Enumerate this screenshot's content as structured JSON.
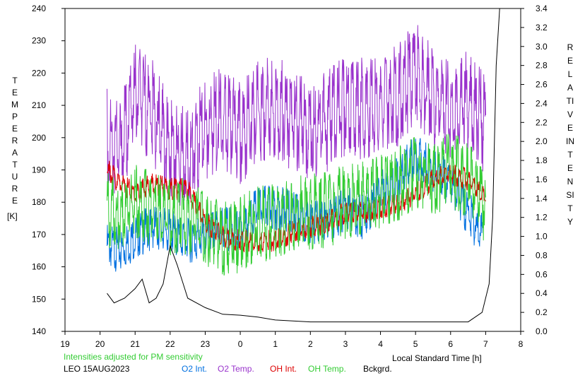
{
  "chart_data": {
    "type": "line",
    "y_left_label": "TEMPERATURE",
    "y_left_unit": "[K]",
    "y_right_label": "RELATIVE INTENSITY",
    "x_label": "Local Standard Time [h]",
    "x_ticks": [
      "19",
      "20",
      "21",
      "22",
      "23",
      "0",
      "1",
      "2",
      "3",
      "4",
      "5",
      "6",
      "7",
      "8"
    ],
    "y_left_range": [
      140,
      240
    ],
    "y_left_ticks": [
      140,
      150,
      160,
      170,
      180,
      190,
      200,
      210,
      220,
      230,
      240
    ],
    "y_right_range": [
      0.0,
      3.4
    ],
    "y_right_ticks": [
      "0.0",
      "0.2",
      "0.4",
      "0.6",
      "0.8",
      "1.0",
      "1.2",
      "1.4",
      "1.6",
      "1.8",
      "2.0",
      "2.2",
      "2.4",
      "2.6",
      "2.8",
      "3.0",
      "3.2",
      "3.4"
    ],
    "note": "Intensities adjusted for PM sensitivity",
    "station_date": "LEO 15AUG2023",
    "series": [
      {
        "name": "O2 Int.",
        "color": "#0070e0",
        "axis": "right",
        "x": [
          20.2,
          20.6,
          21.0,
          21.5,
          22.0,
          22.5,
          23.0,
          23.5,
          0.0,
          0.5,
          1.0,
          1.5,
          2.0,
          2.5,
          3.0,
          3.5,
          4.0,
          4.5,
          5.0,
          5.5,
          6.0,
          6.5,
          6.9
        ],
        "y": [
          0.9,
          0.85,
          1.0,
          1.1,
          1.05,
          0.95,
          1.0,
          1.1,
          1.05,
          1.3,
          1.3,
          1.25,
          1.15,
          1.15,
          1.3,
          1.2,
          1.45,
          1.6,
          1.85,
          1.7,
          1.55,
          1.25,
          1.0
        ]
      },
      {
        "name": "O2 Temp.",
        "color": "#9933cc",
        "axis": "left",
        "x": [
          20.2,
          20.6,
          21.0,
          21.5,
          22.0,
          22.5,
          23.0,
          23.5,
          0.0,
          0.5,
          1.0,
          1.5,
          2.0,
          2.5,
          3.0,
          3.5,
          4.0,
          4.5,
          5.0,
          5.5,
          6.0,
          6.5,
          7.0
        ],
        "y": [
          200,
          196,
          214,
          208,
          196,
          193,
          203,
          206,
          201,
          208,
          210,
          205,
          203,
          205,
          210,
          209,
          211,
          213,
          220,
          212,
          208,
          211,
          204
        ]
      },
      {
        "name": "OH Int.",
        "color": "#dd0000",
        "axis": "right",
        "x": [
          20.2,
          20.6,
          21.0,
          21.5,
          22.0,
          22.5,
          23.0,
          23.5,
          0.0,
          0.5,
          1.0,
          1.5,
          2.0,
          2.5,
          3.0,
          3.5,
          4.0,
          4.5,
          5.0,
          5.5,
          6.0,
          6.5,
          7.0
        ],
        "y": [
          1.7,
          1.55,
          1.45,
          1.55,
          1.5,
          1.5,
          1.15,
          1.0,
          0.95,
          0.95,
          0.95,
          1.05,
          1.1,
          1.15,
          1.25,
          1.25,
          1.3,
          1.35,
          1.45,
          1.6,
          1.65,
          1.6,
          1.4
        ]
      },
      {
        "name": "OH Temp.",
        "color": "#33cc33",
        "axis": "left",
        "x": [
          20.2,
          20.6,
          21.0,
          21.5,
          22.0,
          22.5,
          23.0,
          23.5,
          0.0,
          0.5,
          1.0,
          1.5,
          2.0,
          2.5,
          3.0,
          3.5,
          4.0,
          4.5,
          5.0,
          5.5,
          6.0,
          6.5,
          7.0
        ],
        "y": [
          178,
          174,
          180,
          178,
          175,
          176,
          172,
          169,
          170,
          173,
          174,
          176,
          177,
          178,
          180,
          182,
          183,
          186,
          190,
          188,
          190,
          187,
          178
        ]
      },
      {
        "name": "Bckgrd.",
        "color": "#000000",
        "axis": "right",
        "x": [
          20.2,
          20.4,
          20.7,
          21.0,
          21.2,
          21.4,
          21.6,
          21.8,
          22.0,
          22.2,
          22.5,
          23.0,
          23.5,
          0.0,
          0.5,
          1.0,
          2.0,
          3.0,
          4.0,
          5.0,
          6.0,
          6.5,
          6.9,
          7.1,
          7.2,
          7.3,
          7.4
        ],
        "y": [
          0.4,
          0.3,
          0.35,
          0.45,
          0.55,
          0.3,
          0.35,
          0.5,
          0.9,
          0.7,
          0.35,
          0.25,
          0.18,
          0.17,
          0.15,
          0.12,
          0.1,
          0.1,
          0.1,
          0.1,
          0.1,
          0.1,
          0.2,
          0.5,
          1.2,
          2.8,
          3.4
        ]
      }
    ]
  }
}
